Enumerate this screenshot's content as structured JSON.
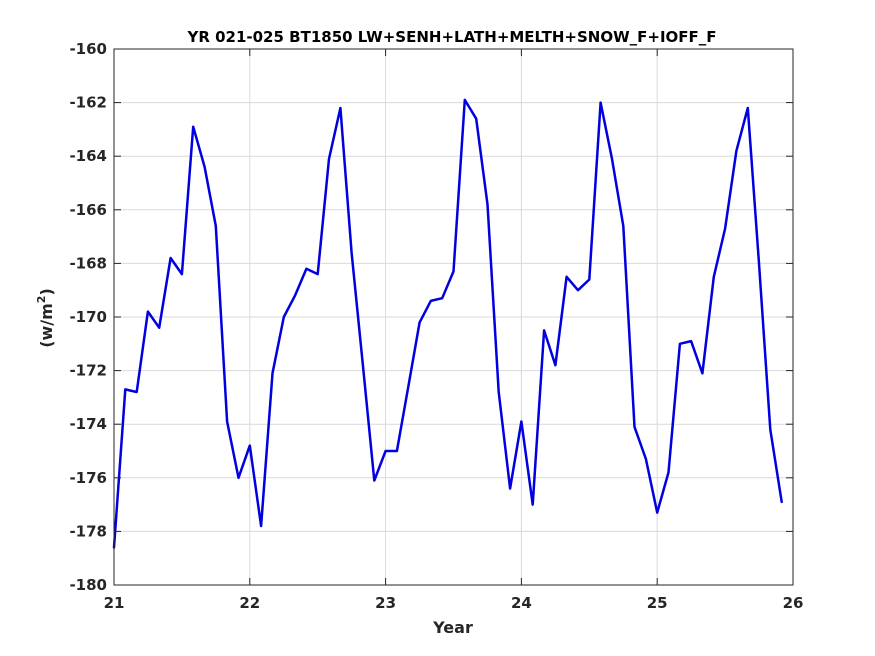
{
  "chart_data": {
    "type": "line",
    "title": "YR 021-025 BT1850 LW+SENH+LATH+MELTH+SNOW_F+IOFF_F",
    "xlabel": "Year",
    "ylabel_main": "(w/m",
    "ylabel_sup": "2",
    "ylabel_close": ")",
    "xlim": [
      21,
      26
    ],
    "ylim": [
      -180,
      -160
    ],
    "xticks": [
      21,
      22,
      23,
      24,
      25,
      26
    ],
    "yticks": [
      -180,
      -178,
      -176,
      -174,
      -172,
      -170,
      -168,
      -166,
      -164,
      -162,
      -160
    ],
    "xtick_labels": [
      "21",
      "22",
      "23",
      "24",
      "25",
      "26"
    ],
    "ytick_labels": [
      "-180",
      "-178",
      "-176",
      "-174",
      "-172",
      "-170",
      "-168",
      "-166",
      "-164",
      "-162",
      "-160"
    ],
    "grid": true,
    "series_color": "#0000e0",
    "series": [
      {
        "x": [
          21.0,
          21.083,
          21.167,
          21.25,
          21.333,
          21.417,
          21.5,
          21.583,
          21.667,
          21.75,
          21.833,
          21.917,
          22.0,
          22.083,
          22.167,
          22.25,
          22.333,
          22.417,
          22.5,
          22.583,
          22.667,
          22.75,
          22.833,
          22.917,
          23.0,
          23.083,
          23.167,
          23.25,
          23.333,
          23.417,
          23.5,
          23.583,
          23.667,
          23.75,
          23.833,
          23.917,
          24.0,
          24.083,
          24.167,
          24.25,
          24.333,
          24.417,
          24.5,
          24.583,
          24.667,
          24.75,
          24.833,
          24.917,
          25.0,
          25.083,
          25.167,
          25.25,
          25.333,
          25.417,
          25.5,
          25.583,
          25.667,
          25.75,
          25.833,
          25.917
        ],
        "values": [
          -178.6,
          -172.7,
          -172.8,
          -169.8,
          -170.4,
          -167.8,
          -168.4,
          -162.9,
          -164.4,
          -166.6,
          -173.9,
          -176.0,
          -174.8,
          -177.8,
          -172.1,
          -170.0,
          -169.2,
          -168.2,
          -168.4,
          -164.1,
          -162.2,
          -167.6,
          -171.8,
          -176.1,
          -175.0,
          -175.0,
          -172.6,
          -170.2,
          -169.4,
          -169.3,
          -168.3,
          -161.9,
          -162.6,
          -165.8,
          -172.8,
          -176.4,
          -173.9,
          -177.0,
          -170.5,
          -171.8,
          -168.5,
          -169.0,
          -168.6,
          -162.0,
          -164.1,
          -166.6,
          -174.1,
          -175.3,
          -177.3,
          -175.8,
          -171.0,
          -170.9,
          -172.1,
          -168.5,
          -166.7,
          -163.8,
          -162.2,
          -168.0,
          -174.2,
          -176.9
        ]
      }
    ]
  }
}
